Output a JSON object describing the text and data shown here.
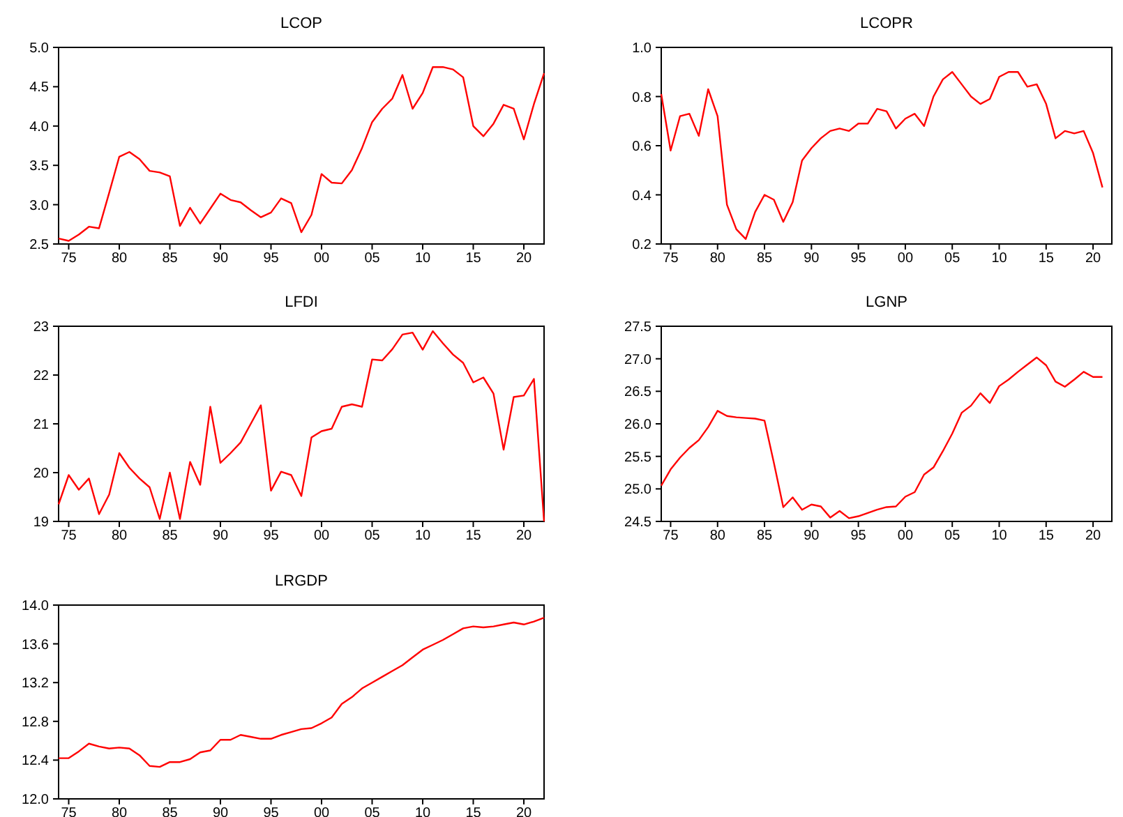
{
  "chart_data": [
    {
      "type": "line",
      "title": "LCOP",
      "x": [
        1974,
        1975,
        1976,
        1977,
        1978,
        1979,
        1980,
        1981,
        1982,
        1983,
        1984,
        1985,
        1986,
        1987,
        1988,
        1989,
        1990,
        1991,
        1992,
        1993,
        1994,
        1995,
        1996,
        1997,
        1998,
        1999,
        2000,
        2001,
        2002,
        2003,
        2004,
        2005,
        2006,
        2007,
        2008,
        2009,
        2010,
        2011,
        2012,
        2013,
        2014,
        2015,
        2016,
        2017,
        2018,
        2019,
        2020,
        2021,
        2022
      ],
      "series": [
        {
          "color": "#ff0000",
          "values": [
            2.57,
            2.54,
            2.62,
            2.72,
            2.7,
            3.15,
            3.61,
            3.67,
            3.58,
            3.43,
            3.41,
            3.36,
            2.73,
            2.96,
            2.76,
            2.95,
            3.14,
            3.06,
            3.03,
            2.93,
            2.84,
            2.9,
            3.08,
            3.02,
            2.65,
            2.87,
            3.39,
            3.28,
            3.27,
            3.44,
            3.72,
            4.05,
            4.22,
            4.35,
            4.65,
            4.22,
            4.42,
            4.75,
            4.75,
            4.72,
            4.62,
            4.0,
            3.87,
            4.03,
            4.27,
            4.22,
            3.83,
            4.28,
            4.67
          ]
        }
      ],
      "xlim": [
        1974,
        2022
      ],
      "xticks": [
        {
          "value": 1975,
          "label": "75"
        },
        {
          "value": 1980,
          "label": "80"
        },
        {
          "value": 1985,
          "label": "85"
        },
        {
          "value": 1990,
          "label": "90"
        },
        {
          "value": 1995,
          "label": "95"
        },
        {
          "value": 2000,
          "label": "00"
        },
        {
          "value": 2005,
          "label": "05"
        },
        {
          "value": 2010,
          "label": "10"
        },
        {
          "value": 2015,
          "label": "15"
        },
        {
          "value": 2020,
          "label": "20"
        }
      ],
      "ylim": [
        2.5,
        5.0
      ],
      "yticks": [
        {
          "value": 2.5,
          "label": "2.5"
        },
        {
          "value": 3,
          "label": "3.0"
        },
        {
          "value": 3.5,
          "label": "3.5"
        },
        {
          "value": 4,
          "label": "4.0"
        },
        {
          "value": 4.5,
          "label": "4.5"
        },
        {
          "value": 5,
          "label": "5.0"
        }
      ],
      "grid": false
    },
    {
      "type": "line",
      "title": "LCOPR",
      "x": [
        1974,
        1975,
        1976,
        1977,
        1978,
        1979,
        1980,
        1981,
        1982,
        1983,
        1984,
        1985,
        1986,
        1987,
        1988,
        1989,
        1990,
        1991,
        1992,
        1993,
        1994,
        1995,
        1996,
        1997,
        1998,
        1999,
        2000,
        2001,
        2002,
        2003,
        2004,
        2005,
        2006,
        2007,
        2008,
        2009,
        2010,
        2011,
        2012,
        2013,
        2014,
        2015,
        2016,
        2017,
        2018,
        2019,
        2020,
        2021
      ],
      "series": [
        {
          "color": "#ff0000",
          "values": [
            0.81,
            0.58,
            0.72,
            0.73,
            0.64,
            0.83,
            0.72,
            0.36,
            0.26,
            0.22,
            0.33,
            0.4,
            0.38,
            0.29,
            0.37,
            0.54,
            0.59,
            0.63,
            0.66,
            0.67,
            0.66,
            0.69,
            0.69,
            0.75,
            0.74,
            0.67,
            0.71,
            0.73,
            0.68,
            0.8,
            0.87,
            0.9,
            0.85,
            0.8,
            0.77,
            0.79,
            0.88,
            0.9,
            0.9,
            0.84,
            0.85,
            0.77,
            0.63,
            0.66,
            0.65,
            0.66,
            0.57,
            0.43
          ]
        }
      ],
      "xlim": [
        1974,
        2022
      ],
      "xticks": [
        {
          "value": 1975,
          "label": "75"
        },
        {
          "value": 1980,
          "label": "80"
        },
        {
          "value": 1985,
          "label": "85"
        },
        {
          "value": 1990,
          "label": "90"
        },
        {
          "value": 1995,
          "label": "95"
        },
        {
          "value": 2000,
          "label": "00"
        },
        {
          "value": 2005,
          "label": "05"
        },
        {
          "value": 2010,
          "label": "10"
        },
        {
          "value": 2015,
          "label": "15"
        },
        {
          "value": 2020,
          "label": "20"
        }
      ],
      "ylim": [
        0.2,
        1.0
      ],
      "yticks": [
        0.2,
        0.4,
        0.6,
        0.8,
        {
          "value": 1,
          "label": "1.0"
        }
      ],
      "grid": false
    },
    {
      "type": "line",
      "title": "LFDI",
      "x": [
        1974,
        1975,
        1976,
        1977,
        1978,
        1979,
        1980,
        1981,
        1982,
        1983,
        1984,
        1985,
        1986,
        1987,
        1988,
        1989,
        1990,
        1991,
        1992,
        1993,
        1994,
        1995,
        1996,
        1997,
        1998,
        1999,
        2000,
        2001,
        2002,
        2003,
        2004,
        2005,
        2006,
        2007,
        2008,
        2009,
        2010,
        2011,
        2012,
        2013,
        2014,
        2015,
        2016,
        2017,
        2018,
        2019,
        2020,
        2021,
        2022
      ],
      "series": [
        {
          "color": "#ff0000",
          "values": [
            19.35,
            19.95,
            19.65,
            19.88,
            19.15,
            19.55,
            20.4,
            20.1,
            19.88,
            19.7,
            19.05,
            20.0,
            19.05,
            20.22,
            19.75,
            21.35,
            20.2,
            20.4,
            20.62,
            21.0,
            21.38,
            19.63,
            20.02,
            19.95,
            19.52,
            20.72,
            20.85,
            20.9,
            21.35,
            21.4,
            21.35,
            22.32,
            22.3,
            22.53,
            22.83,
            22.87,
            22.52,
            22.9,
            22.65,
            22.42,
            22.25,
            21.85,
            21.95,
            21.62,
            20.47,
            21.55,
            21.58,
            21.92,
            19.0
          ]
        }
      ],
      "xlim": [
        1974,
        2022
      ],
      "xticks": [
        {
          "value": 1975,
          "label": "75"
        },
        {
          "value": 1980,
          "label": "80"
        },
        {
          "value": 1985,
          "label": "85"
        },
        {
          "value": 1990,
          "label": "90"
        },
        {
          "value": 1995,
          "label": "95"
        },
        {
          "value": 2000,
          "label": "00"
        },
        {
          "value": 2005,
          "label": "05"
        },
        {
          "value": 2010,
          "label": "10"
        },
        {
          "value": 2015,
          "label": "15"
        },
        {
          "value": 2020,
          "label": "20"
        }
      ],
      "ylim": [
        19,
        23
      ],
      "yticks": [
        19,
        20,
        21,
        22,
        23
      ],
      "grid": false
    },
    {
      "type": "line",
      "title": "LGNP",
      "x": [
        1974,
        1975,
        1976,
        1977,
        1978,
        1979,
        1980,
        1981,
        1982,
        1983,
        1984,
        1985,
        1986,
        1987,
        1988,
        1989,
        1990,
        1991,
        1992,
        1993,
        1994,
        1995,
        1996,
        1997,
        1998,
        1999,
        2000,
        2001,
        2002,
        2003,
        2004,
        2005,
        2006,
        2007,
        2008,
        2009,
        2010,
        2011,
        2012,
        2013,
        2014,
        2015,
        2016,
        2017,
        2018,
        2019,
        2020,
        2021
      ],
      "series": [
        {
          "color": "#ff0000",
          "values": [
            25.05,
            25.3,
            25.48,
            25.63,
            25.75,
            25.95,
            26.2,
            26.12,
            26.1,
            26.09,
            26.08,
            26.05,
            25.4,
            24.72,
            24.87,
            24.68,
            24.76,
            24.73,
            24.56,
            24.66,
            24.55,
            24.58,
            24.63,
            24.68,
            24.72,
            24.73,
            24.88,
            24.95,
            25.22,
            25.33,
            25.58,
            25.85,
            26.17,
            26.28,
            26.47,
            26.32,
            26.58,
            26.68,
            26.8,
            26.91,
            27.02,
            26.9,
            26.65,
            26.57,
            26.68,
            26.8,
            26.72,
            26.72
          ]
        }
      ],
      "xlim": [
        1974,
        2022
      ],
      "xticks": [
        {
          "value": 1975,
          "label": "75"
        },
        {
          "value": 1980,
          "label": "80"
        },
        {
          "value": 1985,
          "label": "85"
        },
        {
          "value": 1990,
          "label": "90"
        },
        {
          "value": 1995,
          "label": "95"
        },
        {
          "value": 2000,
          "label": "00"
        },
        {
          "value": 2005,
          "label": "05"
        },
        {
          "value": 2010,
          "label": "10"
        },
        {
          "value": 2015,
          "label": "15"
        },
        {
          "value": 2020,
          "label": "20"
        }
      ],
      "ylim": [
        24.5,
        27.5
      ],
      "yticks": [
        24.5,
        {
          "value": 25,
          "label": "25.0"
        },
        25.5,
        {
          "value": 26,
          "label": "26.0"
        },
        26.5,
        {
          "value": 27,
          "label": "27.0"
        },
        27.5
      ],
      "grid": false
    },
    {
      "type": "line",
      "title": "LRGDP",
      "x": [
        1974,
        1975,
        1976,
        1977,
        1978,
        1979,
        1980,
        1981,
        1982,
        1983,
        1984,
        1985,
        1986,
        1987,
        1988,
        1989,
        1990,
        1991,
        1992,
        1993,
        1994,
        1995,
        1996,
        1997,
        1998,
        1999,
        2000,
        2001,
        2002,
        2003,
        2004,
        2005,
        2006,
        2007,
        2008,
        2009,
        2010,
        2011,
        2012,
        2013,
        2014,
        2015,
        2016,
        2017,
        2018,
        2019,
        2020,
        2021,
        2022
      ],
      "series": [
        {
          "color": "#ff0000",
          "values": [
            12.42,
            12.42,
            12.49,
            12.57,
            12.54,
            12.52,
            12.53,
            12.52,
            12.45,
            12.34,
            12.33,
            12.38,
            12.38,
            12.41,
            12.48,
            12.5,
            12.61,
            12.61,
            12.66,
            12.64,
            12.62,
            12.62,
            12.66,
            12.69,
            12.72,
            12.73,
            12.78,
            12.84,
            12.98,
            13.05,
            13.14,
            13.2,
            13.26,
            13.32,
            13.38,
            13.46,
            13.54,
            13.59,
            13.64,
            13.7,
            13.76,
            13.78,
            13.77,
            13.78,
            13.8,
            13.82,
            13.8,
            13.83,
            13.87
          ]
        }
      ],
      "xlim": [
        1974,
        2022
      ],
      "xticks": [
        {
          "value": 1975,
          "label": "75"
        },
        {
          "value": 1980,
          "label": "80"
        },
        {
          "value": 1985,
          "label": "85"
        },
        {
          "value": 1990,
          "label": "90"
        },
        {
          "value": 1995,
          "label": "95"
        },
        {
          "value": 2000,
          "label": "00"
        },
        {
          "value": 2005,
          "label": "05"
        },
        {
          "value": 2010,
          "label": "10"
        },
        {
          "value": 2015,
          "label": "15"
        },
        {
          "value": 2020,
          "label": "20"
        }
      ],
      "ylim": [
        12.0,
        14.0
      ],
      "yticks": [
        {
          "value": 12,
          "label": "12.0"
        },
        12.4,
        12.8,
        13.2,
        13.6,
        {
          "value": 14,
          "label": "14.0"
        }
      ],
      "grid": false
    }
  ]
}
